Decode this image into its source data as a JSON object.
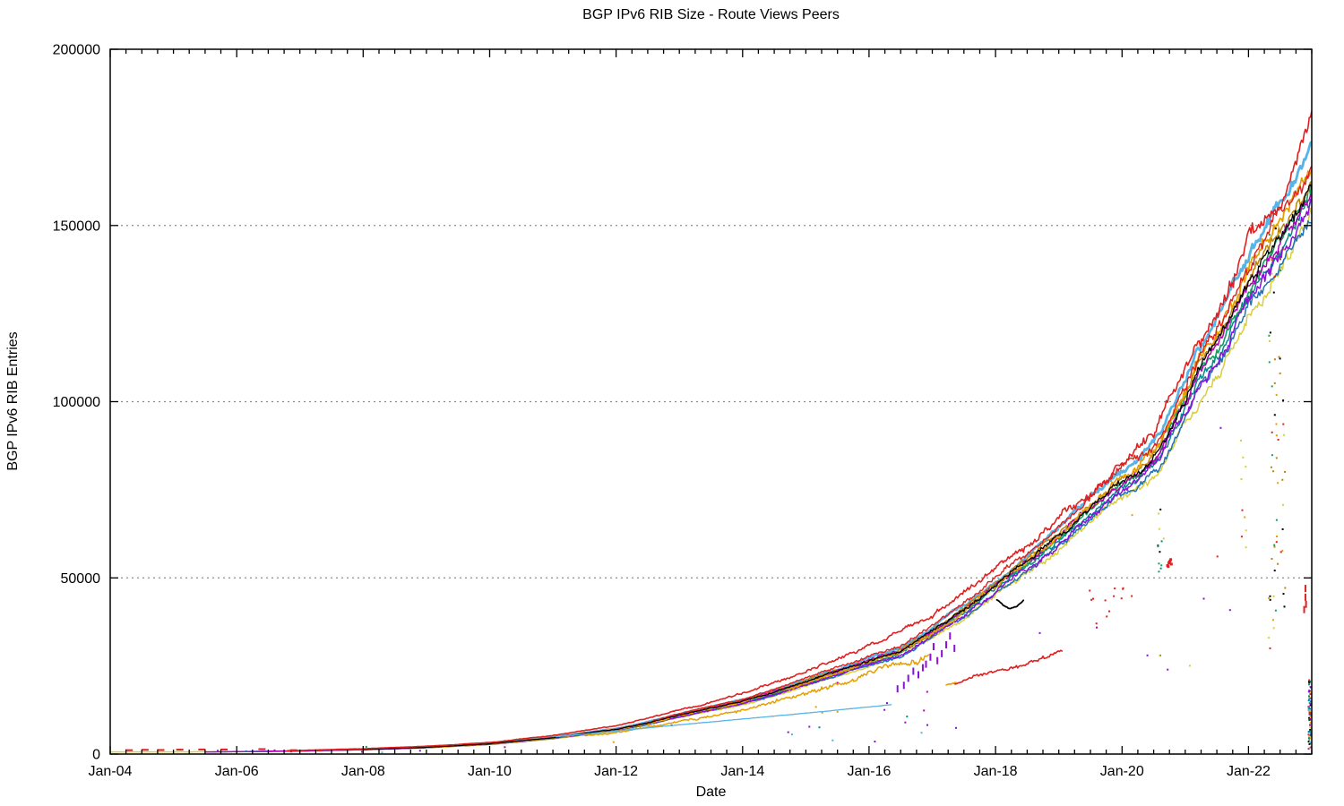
{
  "chart_data": {
    "type": "line",
    "title": "BGP IPv6 RIB Size - Route Views Peers",
    "xlabel": "Date",
    "ylabel": "BGP IPv6 RIB Entries",
    "xlim": [
      2004,
      2023
    ],
    "ylim": [
      0,
      200000
    ],
    "grid": "horizontal-dotted",
    "legend_position": "none",
    "x_ticks": [
      {
        "t": 2004,
        "label": "Jan-04"
      },
      {
        "t": 2006,
        "label": "Jan-06"
      },
      {
        "t": 2008,
        "label": "Jan-08"
      },
      {
        "t": 2010,
        "label": "Jan-10"
      },
      {
        "t": 2012,
        "label": "Jan-12"
      },
      {
        "t": 2014,
        "label": "Jan-14"
      },
      {
        "t": 2016,
        "label": "Jan-16"
      },
      {
        "t": 2018,
        "label": "Jan-18"
      },
      {
        "t": 2020,
        "label": "Jan-20"
      },
      {
        "t": 2022,
        "label": "Jan-22"
      }
    ],
    "x_minor_step_years": 0.25,
    "y_ticks": [
      {
        "v": 0,
        "label": "0",
        "grid": false
      },
      {
        "v": 50000,
        "label": "50000",
        "grid": true
      },
      {
        "v": 100000,
        "label": "100000",
        "grid": true
      },
      {
        "v": 150000,
        "label": "150000",
        "grid": true
      },
      {
        "v": 200000,
        "label": "200000",
        "grid": false
      }
    ],
    "grid_color": "#8a8a8a",
    "frame_color": "#000000",
    "base_points": [
      [
        2004,
        450
      ],
      [
        2005,
        550
      ],
      [
        2006,
        700
      ],
      [
        2007,
        900
      ],
      [
        2008,
        1300
      ],
      [
        2009,
        1900
      ],
      [
        2010,
        2900
      ],
      [
        2011,
        4600
      ],
      [
        2011.5,
        5900
      ],
      [
        2012,
        7000
      ],
      [
        2012.5,
        8800
      ],
      [
        2013,
        11000
      ],
      [
        2013.5,
        13000
      ],
      [
        2014,
        15000
      ],
      [
        2014.5,
        17600
      ],
      [
        2015,
        20500
      ],
      [
        2015.5,
        23400
      ],
      [
        2016,
        26500
      ],
      [
        2016.5,
        29200
      ],
      [
        2017,
        35000
      ],
      [
        2017.5,
        41000
      ],
      [
        2018,
        48000
      ],
      [
        2018.5,
        54500
      ],
      [
        2019,
        62000
      ],
      [
        2019.3,
        66500
      ],
      [
        2019.6,
        71500
      ],
      [
        2020,
        77500
      ],
      [
        2020.3,
        80500
      ],
      [
        2020.6,
        86000
      ],
      [
        2021,
        100000
      ],
      [
        2021.2,
        108000
      ],
      [
        2021.5,
        115000
      ],
      [
        2022,
        133000
      ],
      [
        2022.5,
        146000
      ],
      [
        2023,
        159000
      ]
    ],
    "series": [
      {
        "name": "peer-skyblue-halo",
        "color": "#56b4e9",
        "width": 2.8,
        "base": true,
        "start": 2008.4,
        "mult": [
          1.025,
          1.075
        ],
        "jit": 0.012,
        "wob": 0.01,
        "seed": 1
      },
      {
        "name": "peer-yellow",
        "color": "#d9cf3a",
        "width": 1.5,
        "jit": 0.018,
        "wob": 0.012,
        "drop": 0.003,
        "seed": 2,
        "points": [
          [
            2004,
            600
          ],
          [
            2005,
            620
          ],
          [
            2006,
            660
          ],
          [
            2007,
            820
          ],
          [
            2008,
            1250
          ],
          [
            2009,
            1750
          ],
          [
            2010,
            2700
          ],
          [
            2011,
            4300
          ],
          [
            2012,
            6500
          ],
          [
            2013,
            10300
          ],
          [
            2014,
            14000
          ],
          [
            2015,
            19200
          ],
          [
            2016,
            24800
          ],
          [
            2017,
            32700
          ],
          [
            2018,
            44900
          ],
          [
            2019,
            58000
          ],
          [
            2020,
            72500
          ],
          [
            2020.6,
            80400
          ],
          [
            2021,
            93500
          ],
          [
            2021.5,
            107500
          ],
          [
            2022,
            124400
          ],
          [
            2022.5,
            136600
          ],
          [
            2023,
            153000
          ]
        ]
      },
      {
        "name": "peer-steelblue",
        "color": "#2171b5",
        "width": 1.5,
        "base": true,
        "start": 2007.4,
        "mult": [
          0.952,
          0.952
        ],
        "jit": 0.016,
        "wob": 0.011,
        "seed": 3
      },
      {
        "name": "peer-teal",
        "color": "#008b8b",
        "width": 1.5,
        "base": true,
        "start": 2006.0,
        "mult": [
          0.973,
          0.985
        ],
        "jit": 0.016,
        "wob": 0.011,
        "seed": 4
      },
      {
        "name": "peer-seagreen",
        "color": "#12a05f",
        "width": 1.6,
        "base": true,
        "start": 2008.6,
        "mult": [
          0.99,
          1.0
        ],
        "jit": 0.015,
        "wob": 0.011,
        "seed": 5
      },
      {
        "name": "peer-purple",
        "color": "#8a11d8",
        "width": 1.5,
        "base": true,
        "start": 2005.5,
        "mult": [
          0.962,
          0.972
        ],
        "jit": 0.017,
        "wob": 0.012,
        "drop": 0.004,
        "seed": 6
      },
      {
        "name": "peer-darkgold",
        "color": "#b8860b",
        "width": 1.5,
        "base": true,
        "start": 2010.5,
        "mult": [
          1.012,
          1.018
        ],
        "jit": 0.015,
        "wob": 0.01,
        "seed": 7
      },
      {
        "name": "peer-magenta",
        "color": "#b300b3",
        "width": 1.5,
        "base": true,
        "start": 2006.5,
        "mult": [
          1.005,
          0.99
        ],
        "jit": 0.016,
        "wob": 0.012,
        "drop": 0.003,
        "seed": 8
      },
      {
        "name": "peer-orange",
        "color": "#e69f00",
        "width": 1.7,
        "base": true,
        "start": 2009.0,
        "mult": [
          0.985,
          1.055
        ],
        "jit": 0.018,
        "wob": 0.013,
        "drop": 0.004,
        "seed": 9
      },
      {
        "name": "peer-black",
        "color": "#000000",
        "width": 1.3,
        "base": true,
        "start": 2008.0,
        "mult": [
          1.002,
          1.008
        ],
        "jit": 0.014,
        "wob": 0.01,
        "seed": 10
      },
      {
        "name": "peer-red-2",
        "color": "#e02020",
        "width": 1.4,
        "base": true,
        "start": 2012.6,
        "mult": [
          1.045,
          1.05
        ],
        "jit": 0.016,
        "wob": 0.012,
        "seed": 11
      },
      {
        "name": "peer-red-top",
        "color": "#e02020",
        "width": 1.6,
        "jit": 0.02,
        "wob": 0.014,
        "seed": 12,
        "points": [
          [
            2006.8,
            950
          ],
          [
            2008,
            1500
          ],
          [
            2009,
            2200
          ],
          [
            2010,
            3300
          ],
          [
            2011,
            5300
          ],
          [
            2012,
            8000
          ],
          [
            2013,
            12500
          ],
          [
            2014,
            17200
          ],
          [
            2015,
            23300
          ],
          [
            2016,
            30500
          ],
          [
            2017,
            39000
          ],
          [
            2017.5,
            45500
          ],
          [
            2018,
            53500
          ],
          [
            2018.5,
            59500
          ],
          [
            2019,
            68000
          ],
          [
            2019.5,
            73500
          ],
          [
            2020,
            83000
          ],
          [
            2020.5,
            91000
          ],
          [
            2021,
            110000
          ],
          [
            2021.2,
            117000
          ],
          [
            2021.5,
            123000
          ],
          [
            2022,
            146000
          ],
          [
            2022.3,
            152000
          ],
          [
            2022.5,
            158000
          ],
          [
            2022.8,
            170000
          ],
          [
            2023,
            180000
          ]
        ]
      },
      {
        "name": "peer-orange-low",
        "color": "#e69f00",
        "width": 1.5,
        "jit": 0.045,
        "wob": 0.025,
        "drop": 0.012,
        "seed": 13,
        "points": [
          [
            2011.5,
            5200
          ],
          [
            2012,
            6100
          ],
          [
            2013,
            9200
          ],
          [
            2014,
            12600
          ],
          [
            2015,
            17200
          ],
          [
            2016,
            22800
          ],
          [
            2016.5,
            25600
          ],
          [
            2016.95,
            28200
          ]
        ]
      },
      {
        "name": "peer-skyblue-linear",
        "color": "#5ab4e5",
        "width": 1.3,
        "jit": 0.006,
        "wob": 0.002,
        "seed": 14,
        "points": [
          [
            2011.05,
            4900
          ],
          [
            2013,
            8300
          ],
          [
            2015,
            11600
          ],
          [
            2016.35,
            14000
          ]
        ]
      },
      {
        "name": "peer-red-low",
        "color": "#e02020",
        "width": 1.6,
        "jit": 0.025,
        "wob": 0.015,
        "seed": 15,
        "points": [
          [
            2017.35,
            19800
          ],
          [
            2017.7,
            22300
          ],
          [
            2018,
            23600
          ],
          [
            2018.4,
            25300
          ],
          [
            2018.8,
            27400
          ],
          [
            2019.05,
            29000
          ]
        ]
      },
      {
        "name": "peer-orange-tail",
        "color": "#e69f00",
        "width": 1.6,
        "jit": 0.01,
        "wob": 0.005,
        "seed": 16,
        "points": [
          [
            2017.22,
            19600
          ],
          [
            2017.38,
            20300
          ]
        ]
      },
      {
        "name": "peer-black-dip",
        "color": "#000000",
        "width": 1.8,
        "jit": 0.006,
        "wob": 0.003,
        "seed": 17,
        "points": [
          [
            2018.02,
            43800
          ],
          [
            2018.12,
            42200
          ],
          [
            2018.22,
            41300
          ],
          [
            2018.32,
            41600
          ],
          [
            2018.45,
            43600
          ]
        ]
      }
    ],
    "scatters": [
      {
        "name": "purple-debris",
        "style": "vdash",
        "color": "#8a11d8",
        "size": 2,
        "points": [
          [
            2016.45,
            18500
          ],
          [
            2016.55,
            19500
          ],
          [
            2016.62,
            21500
          ],
          [
            2016.7,
            23500
          ],
          [
            2016.78,
            22500
          ],
          [
            2016.85,
            24500
          ],
          [
            2016.9,
            25500
          ],
          [
            2016.97,
            27500
          ],
          [
            2017.02,
            30500
          ],
          [
            2017.08,
            26500
          ],
          [
            2017.15,
            28500
          ],
          [
            2017.22,
            31000
          ],
          [
            2017.28,
            33500
          ],
          [
            2017.35,
            30000
          ]
        ]
      },
      {
        "name": "red-blob-2020",
        "style": "dots",
        "color": "#e02020",
        "size": 3,
        "points": [
          [
            2020.72,
            53500
          ],
          [
            2020.74,
            54200
          ],
          [
            2020.76,
            54800
          ],
          [
            2020.78,
            53900
          ],
          [
            2020.75,
            54500
          ],
          [
            2020.73,
            53200
          ],
          [
            2020.77,
            55200
          ]
        ]
      },
      {
        "name": "early-red-dashes",
        "style": "hdash",
        "color": "#e02020",
        "size": 2,
        "points": [
          [
            2004.3,
            1100
          ],
          [
            2004.55,
            1200
          ],
          [
            2004.8,
            1150
          ],
          [
            2005.1,
            1250
          ],
          [
            2005.45,
            1300
          ],
          [
            2005.8,
            1300
          ],
          [
            2006.4,
            1400
          ],
          [
            2006.9,
            1100
          ],
          [
            2007.3,
            1000
          ]
        ]
      },
      {
        "name": "early-misc-dots",
        "style": "dots",
        "color": "#008b8b",
        "size": 2,
        "points": [
          [
            2006.15,
            800
          ],
          [
            2005.7,
            950,
            "#8a11d8"
          ],
          [
            2006.6,
            1050,
            "#b300b3"
          ],
          [
            2008.05,
            2050,
            "#12a05f"
          ],
          [
            2008.3,
            450,
            "#56b4e9"
          ]
        ]
      },
      {
        "name": "right-red-dashes",
        "style": "vdash",
        "color": "#e02020",
        "size": 2,
        "points": [
          [
            2022.88,
            41000
          ],
          [
            2022.9,
            44500
          ],
          [
            2022.9,
            47000
          ],
          [
            2022.91,
            42500
          ]
        ]
      }
    ],
    "clouds": [
      {
        "name": "debris-column-2022",
        "x": [
          2022.32,
          2022.58
        ],
        "v": [
          28000,
          151000
        ],
        "n": 60,
        "size": 2,
        "seed": 21,
        "colors": [
          "#e69f00",
          "#000000",
          "#e02020",
          "#d9cf3a",
          "#b8860b",
          "#12a05f"
        ]
      },
      {
        "name": "debris-column-2021-9",
        "x": [
          2021.87,
          2021.97
        ],
        "v": [
          58000,
          92000
        ],
        "n": 9,
        "size": 2,
        "seed": 22,
        "colors": [
          "#d9cf3a",
          "#e69f00",
          "#e02020"
        ]
      },
      {
        "name": "debris-right-edge",
        "x": [
          2022.95,
          2022.99
        ],
        "v": [
          1200,
          21000
        ],
        "n": 70,
        "size": 2,
        "seed": 23,
        "colors": [
          "#e02020",
          "#56b4e9",
          "#e69f00",
          "#000000",
          "#12a05f",
          "#8a11d8",
          "#d9cf3a",
          "#2171b5",
          "#b300b3",
          "#008b8b"
        ]
      },
      {
        "name": "debris-column-2020-6",
        "x": [
          2020.56,
          2020.64
        ],
        "v": [
          50000,
          73000
        ],
        "n": 11,
        "size": 2,
        "seed": 24,
        "colors": [
          "#12a05f",
          "#008b8b",
          "#d9cf3a",
          "#000000"
        ]
      },
      {
        "name": "debris-mid-sparse",
        "x": [
          2012.6,
          2017.6
        ],
        "v": [
          2500,
          19500
        ],
        "n": 16,
        "size": 2,
        "seed": 25,
        "colors": [
          "#e69f00",
          "#8a11d8",
          "#56b4e9",
          "#b300b3",
          "#008b8b"
        ]
      },
      {
        "name": "debris-late-sparse",
        "x": [
          2020.3,
          2022.8
        ],
        "v": [
          23000,
          60000
        ],
        "n": 10,
        "size": 2,
        "seed": 26,
        "colors": [
          "#e02020",
          "#d9cf3a",
          "#e69f00",
          "#8a11d8"
        ]
      },
      {
        "name": "debris-red-2019",
        "x": [
          2019.4,
          2020.2
        ],
        "v": [
          36000,
          47500
        ],
        "n": 13,
        "size": 2,
        "seed": 27,
        "colors": [
          "#e02020"
        ]
      }
    ]
  }
}
